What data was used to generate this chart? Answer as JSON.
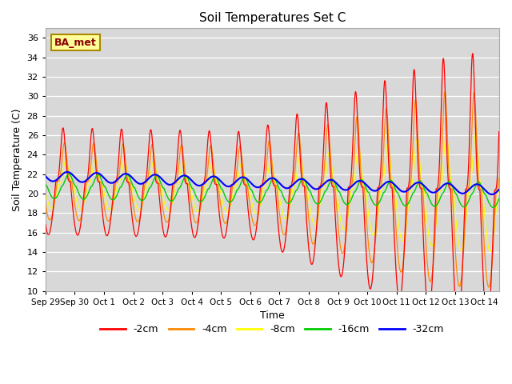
{
  "title": "Soil Temperatures Set C",
  "xlabel": "Time",
  "ylabel": "Soil Temperature (C)",
  "ylim": [
    10,
    37
  ],
  "yticks": [
    10,
    12,
    14,
    16,
    18,
    20,
    22,
    24,
    26,
    28,
    30,
    32,
    34,
    36
  ],
  "annotation_text": "BA_met",
  "colors": {
    "-2cm": "#ff0000",
    "-4cm": "#ff8800",
    "-8cm": "#ffff00",
    "-16cm": "#00cc00",
    "-32cm": "#0000ff"
  },
  "background_color": "#d8d8d8",
  "n_days": 15.5,
  "samples_per_day": 144
}
